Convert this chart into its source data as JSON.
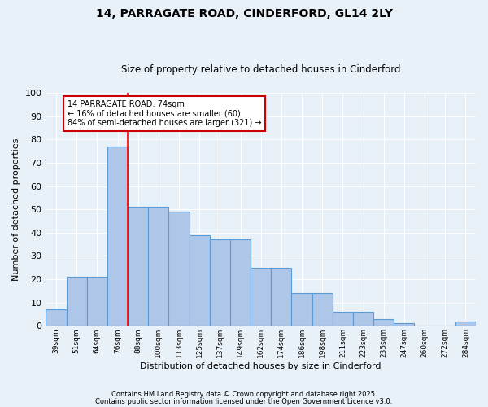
{
  "title1": "14, PARRAGATE ROAD, CINDERFORD, GL14 2LY",
  "title2": "Size of property relative to detached houses in Cinderford",
  "xlabel": "Distribution of detached houses by size in Cinderford",
  "ylabel": "Number of detached properties",
  "categories": [
    "39sqm",
    "51sqm",
    "64sqm",
    "76sqm",
    "88sqm",
    "100sqm",
    "113sqm",
    "125sqm",
    "137sqm",
    "149sqm",
    "162sqm",
    "174sqm",
    "186sqm",
    "198sqm",
    "211sqm",
    "223sqm",
    "235sqm",
    "247sqm",
    "260sqm",
    "272sqm",
    "284sqm"
  ],
  "values": [
    7,
    21,
    21,
    77,
    51,
    51,
    49,
    39,
    37,
    37,
    25,
    25,
    14,
    14,
    6,
    6,
    3,
    1,
    0,
    0,
    2
  ],
  "bar_color": "#aec6e8",
  "bar_edge_color": "#5b9bd5",
  "background_color": "#e8f0f8",
  "grid_color": "#ffffff",
  "red_line_x": 3.5,
  "annotation_text": "14 PARRAGATE ROAD: 74sqm\n← 16% of detached houses are smaller (60)\n84% of semi-detached houses are larger (321) →",
  "annotation_box_color": "#ffffff",
  "annotation_box_edge_color": "#cc0000",
  "ylim": [
    0,
    100
  ],
  "yticks": [
    0,
    10,
    20,
    30,
    40,
    50,
    60,
    70,
    80,
    90,
    100
  ],
  "footer1": "Contains HM Land Registry data © Crown copyright and database right 2025.",
  "footer2": "Contains public sector information licensed under the Open Government Licence v3.0."
}
